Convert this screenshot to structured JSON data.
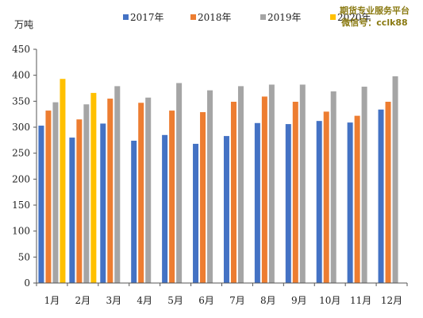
{
  "watermark": {
    "line1": "期货专业服务平台",
    "line2": "微信号：cclk88"
  },
  "chart_data": {
    "type": "bar",
    "unit_label": "万吨",
    "categories": [
      "1月",
      "2月",
      "3月",
      "4月",
      "5月",
      "6月",
      "7月",
      "8月",
      "9月",
      "10月",
      "11月",
      "12月"
    ],
    "ylim": [
      0,
      450
    ],
    "yticks": [
      0,
      50,
      100,
      150,
      200,
      250,
      300,
      350,
      400,
      450
    ],
    "grid": false,
    "legend_position": "top",
    "series": [
      {
        "name": "2017年",
        "color": "#4472C4",
        "values": [
          303,
          280,
          307,
          274,
          285,
          268,
          283,
          308,
          306,
          312,
          309,
          334
        ]
      },
      {
        "name": "2018年",
        "color": "#ED7D31",
        "values": [
          332,
          315,
          355,
          347,
          332,
          329,
          349,
          359,
          349,
          330,
          322,
          349
        ]
      },
      {
        "name": "2019年",
        "color": "#A5A5A5",
        "values": [
          348,
          344,
          379,
          357,
          385,
          371,
          379,
          382,
          382,
          369,
          378,
          398
        ]
      },
      {
        "name": "2020年",
        "color": "#FFC000",
        "values": [
          393,
          366,
          null,
          null,
          null,
          null,
          null,
          null,
          null,
          null,
          null,
          null
        ]
      }
    ]
  }
}
